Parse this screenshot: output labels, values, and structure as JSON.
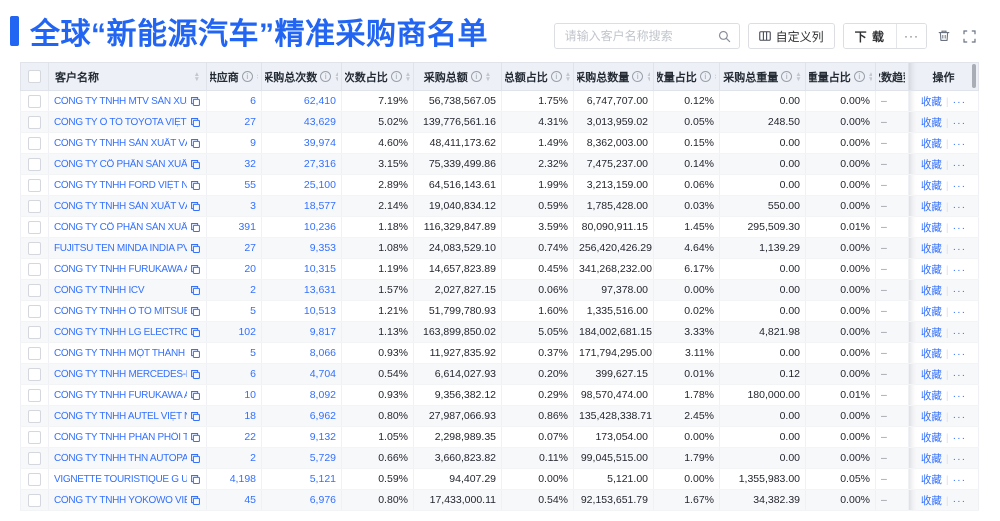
{
  "page": {
    "title": "全球“新能源汽车”精准采购商名单"
  },
  "toolbar": {
    "search_placeholder": "请输入客户名称搜索",
    "customize_columns": "自定义列",
    "download": "下 载",
    "download_more": "···"
  },
  "icons": {
    "sort_asc": "▲",
    "sort_desc": "▼",
    "info": "i",
    "row_more": "···",
    "trend_placeholder": "–"
  },
  "colors": {
    "accent": "#2265f2",
    "link": "#3370ff",
    "header_bg": "#edf0f6",
    "zebra": "#f7f8fa"
  },
  "table": {
    "columns": [
      {
        "key": "checkbox",
        "label": "",
        "info": false,
        "sort": false
      },
      {
        "key": "name",
        "label": "客户名称",
        "info": false,
        "sort": true
      },
      {
        "key": "suppliers",
        "label": "供应商",
        "info": true,
        "sort": true
      },
      {
        "key": "times",
        "label": "采购总次数",
        "info": true,
        "sort": true
      },
      {
        "key": "times_pct",
        "label": "次数占比",
        "info": true,
        "sort": true
      },
      {
        "key": "amount",
        "label": "采购总额",
        "info": true,
        "sort": true
      },
      {
        "key": "amount_pct",
        "label": "总额占比",
        "info": true,
        "sort": true
      },
      {
        "key": "qty",
        "label": "采购总数量",
        "info": true,
        "sort": true
      },
      {
        "key": "qty_pct",
        "label": "数量占比",
        "info": true,
        "sort": true
      },
      {
        "key": "weight",
        "label": "采购总重量",
        "info": true,
        "sort": true
      },
      {
        "key": "weight_pct",
        "label": "重量占比",
        "info": true,
        "sort": true
      },
      {
        "key": "trend",
        "label": "次数趋势",
        "info": false,
        "sort": false
      },
      {
        "key": "actions",
        "label": "操作",
        "info": false,
        "sort": false
      }
    ],
    "actions": {
      "favorite": "收藏",
      "more": "···"
    },
    "rows": [
      {
        "name": "CÔNG TY TNHH MTV SẢN XUẤ...",
        "suppliers": "6",
        "times": "62,410",
        "times_pct": "7.19%",
        "amount": "56,738,567.05",
        "amount_pct": "1.75%",
        "qty": "6,747,707.00",
        "qty_pct": "0.12%",
        "weight": "0.00",
        "weight_pct": "0.00%",
        "trend": "–"
      },
      {
        "name": "CÔNG TY Ô TÔ TOYOTA VIỆT ...",
        "suppliers": "27",
        "times": "43,629",
        "times_pct": "5.02%",
        "amount": "139,776,561.16",
        "amount_pct": "4.31%",
        "qty": "3,013,959.02",
        "qty_pct": "0.05%",
        "weight": "248.50",
        "weight_pct": "0.00%",
        "trend": "–"
      },
      {
        "name": "CÔNG TY TNHH SẢN XUẤT VÀ ...",
        "suppliers": "9",
        "times": "39,974",
        "times_pct": "4.60%",
        "amount": "48,411,173.62",
        "amount_pct": "1.49%",
        "qty": "8,362,003.00",
        "qty_pct": "0.15%",
        "weight": "0.00",
        "weight_pct": "0.00%",
        "trend": "–"
      },
      {
        "name": "CÔNG TY CỔ PHẦN SẢN XUẤT...",
        "suppliers": "32",
        "times": "27,316",
        "times_pct": "3.15%",
        "amount": "75,339,499.86",
        "amount_pct": "2.32%",
        "qty": "7,475,237.00",
        "qty_pct": "0.14%",
        "weight": "0.00",
        "weight_pct": "0.00%",
        "trend": "–"
      },
      {
        "name": "CÔNG TY TNHH FORD VIỆT NAM",
        "suppliers": "55",
        "times": "25,100",
        "times_pct": "2.89%",
        "amount": "64,516,143.61",
        "amount_pct": "1.99%",
        "qty": "3,213,159.00",
        "qty_pct": "0.06%",
        "weight": "0.00",
        "weight_pct": "0.00%",
        "trend": "–"
      },
      {
        "name": "CÔNG TY TNHH SẢN XUẤT VÀ ...",
        "suppliers": "3",
        "times": "18,577",
        "times_pct": "2.14%",
        "amount": "19,040,834.12",
        "amount_pct": "0.59%",
        "qty": "1,785,428.00",
        "qty_pct": "0.03%",
        "weight": "550.00",
        "weight_pct": "0.00%",
        "trend": "–"
      },
      {
        "name": "CÔNG TY CỔ PHẦN SẢN XUẤT...",
        "suppliers": "391",
        "times": "10,236",
        "times_pct": "1.18%",
        "amount": "116,329,847.89",
        "amount_pct": "3.59%",
        "qty": "80,090,911.15",
        "qty_pct": "1.45%",
        "weight": "295,509.30",
        "weight_pct": "0.01%",
        "trend": "–"
      },
      {
        "name": "FUJITSU TEN MINDA INDIA PVT...",
        "suppliers": "27",
        "times": "9,353",
        "times_pct": "1.08%",
        "amount": "24,083,529.10",
        "amount_pct": "0.74%",
        "qty": "256,420,426.29",
        "qty_pct": "4.64%",
        "weight": "1,139.29",
        "weight_pct": "0.00%",
        "trend": "–"
      },
      {
        "name": "CÔNG TY TNHH FURUKAWA A...",
        "suppliers": "20",
        "times": "10,315",
        "times_pct": "1.19%",
        "amount": "14,657,823.89",
        "amount_pct": "0.45%",
        "qty": "341,268,232.00",
        "qty_pct": "6.17%",
        "weight": "0.00",
        "weight_pct": "0.00%",
        "trend": "–"
      },
      {
        "name": "CÔNG TY TNHH ICV",
        "suppliers": "2",
        "times": "13,631",
        "times_pct": "1.57%",
        "amount": "2,027,827.15",
        "amount_pct": "0.06%",
        "qty": "97,378.00",
        "qty_pct": "0.00%",
        "weight": "0.00",
        "weight_pct": "0.00%",
        "trend": "–"
      },
      {
        "name": "CÔNG TY TNHH Ô TÔ MITSUBI...",
        "suppliers": "5",
        "times": "10,513",
        "times_pct": "1.21%",
        "amount": "51,799,780.93",
        "amount_pct": "1.60%",
        "qty": "1,335,516.00",
        "qty_pct": "0.02%",
        "weight": "0.00",
        "weight_pct": "0.00%",
        "trend": "–"
      },
      {
        "name": "CÔNG TY TNHH LG ELECTRON...",
        "suppliers": "102",
        "times": "9,817",
        "times_pct": "1.13%",
        "amount": "163,899,850.02",
        "amount_pct": "5.05%",
        "qty": "184,002,681.15",
        "qty_pct": "3.33%",
        "weight": "4,821.98",
        "weight_pct": "0.00%",
        "trend": "–"
      },
      {
        "name": "CÔNG TY TNHH MỘT THÀNH V...",
        "suppliers": "5",
        "times": "8,066",
        "times_pct": "0.93%",
        "amount": "11,927,835.92",
        "amount_pct": "0.37%",
        "qty": "171,794,295.00",
        "qty_pct": "3.11%",
        "weight": "0.00",
        "weight_pct": "0.00%",
        "trend": "–"
      },
      {
        "name": "CÔNG TY TNHH MERCEDES-B...",
        "suppliers": "6",
        "times": "4,704",
        "times_pct": "0.54%",
        "amount": "6,614,027.93",
        "amount_pct": "0.20%",
        "qty": "399,627.15",
        "qty_pct": "0.01%",
        "weight": "0.12",
        "weight_pct": "0.00%",
        "trend": "–"
      },
      {
        "name": "CÔNG TY TNHH FURUKAWA A...",
        "suppliers": "10",
        "times": "8,092",
        "times_pct": "0.93%",
        "amount": "9,356,382.12",
        "amount_pct": "0.29%",
        "qty": "98,570,474.00",
        "qty_pct": "1.78%",
        "weight": "180,000.00",
        "weight_pct": "0.01%",
        "trend": "–"
      },
      {
        "name": "CÔNG TY TNHH AUTEL VIỆT N...",
        "suppliers": "18",
        "times": "6,962",
        "times_pct": "0.80%",
        "amount": "27,987,066.93",
        "amount_pct": "0.86%",
        "qty": "135,428,338.71",
        "qty_pct": "2.45%",
        "weight": "0.00",
        "weight_pct": "0.00%",
        "trend": "–"
      },
      {
        "name": "CÔNG TY TNHH PHÂN PHỐI T...",
        "suppliers": "22",
        "times": "9,132",
        "times_pct": "1.05%",
        "amount": "2,298,989.35",
        "amount_pct": "0.07%",
        "qty": "173,054.00",
        "qty_pct": "0.00%",
        "weight": "0.00",
        "weight_pct": "0.00%",
        "trend": "–"
      },
      {
        "name": "CÔNG TY TNHH THN AUTOPAR...",
        "suppliers": "2",
        "times": "5,729",
        "times_pct": "0.66%",
        "amount": "3,660,823.82",
        "amount_pct": "0.11%",
        "qty": "99,045,515.00",
        "qty_pct": "1.79%",
        "weight": "0.00",
        "weight_pct": "0.00%",
        "trend": "–"
      },
      {
        "name": "VIGNETTE TOURISTIQUE G UNI...",
        "suppliers": "4,198",
        "times": "5,121",
        "times_pct": "0.59%",
        "amount": "94,407.29",
        "amount_pct": "0.00%",
        "qty": "5,121.00",
        "qty_pct": "0.00%",
        "weight": "1,355,983.00",
        "weight_pct": "0.05%",
        "trend": "–"
      },
      {
        "name": "CÔNG TY TNHH YOKOWO VIỆT...",
        "suppliers": "45",
        "times": "6,976",
        "times_pct": "0.80%",
        "amount": "17,433,000.11",
        "amount_pct": "0.54%",
        "qty": "92,153,651.79",
        "qty_pct": "1.67%",
        "weight": "34,382.39",
        "weight_pct": "0.00%",
        "trend": "–"
      }
    ]
  }
}
